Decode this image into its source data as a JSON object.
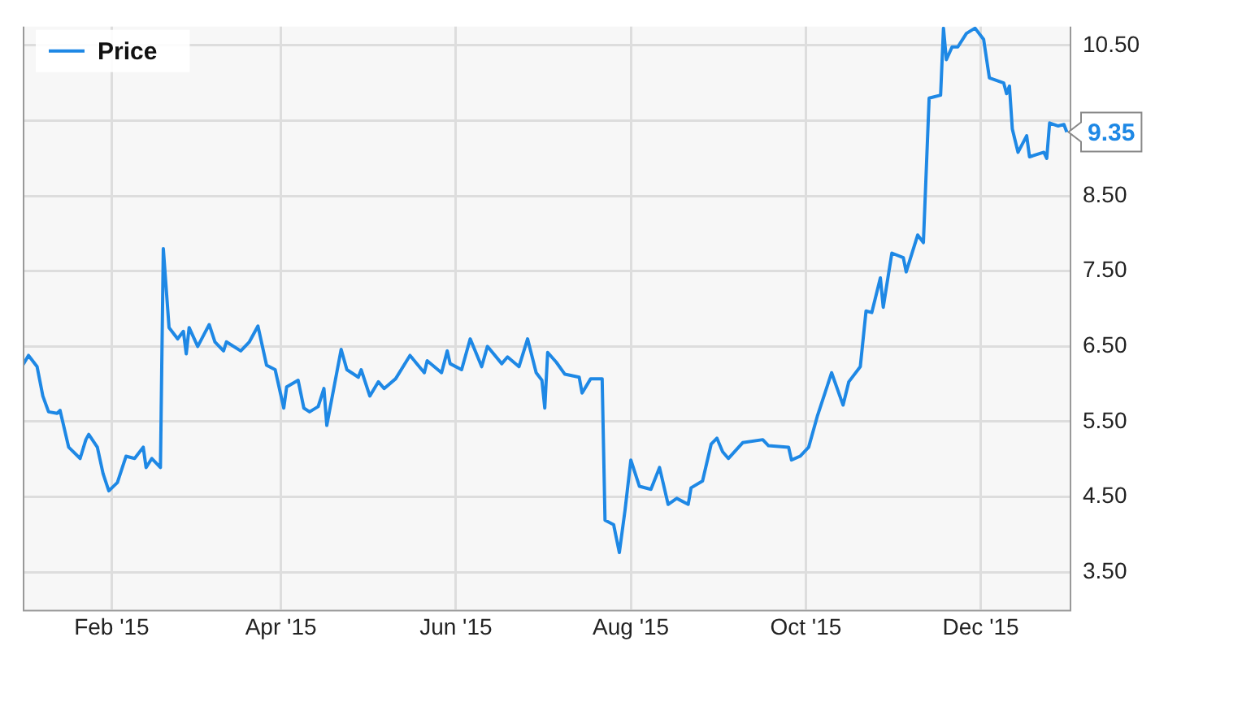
{
  "chart_data": {
    "type": "line",
    "legend": "top left",
    "grid": true,
    "marker": "none",
    "line_style": "solid",
    "xlim": [
      "2015-01-01",
      "2016-01-01"
    ],
    "xticks": [
      {
        "value": "2015-02-01",
        "label": "Feb '15"
      },
      {
        "value": "2015-04-01",
        "label": "Apr '15"
      },
      {
        "value": "2015-06-01",
        "label": "Jun '15"
      },
      {
        "value": "2015-08-01",
        "label": "Aug '15"
      },
      {
        "value": "2015-10-01",
        "label": "Oct '15"
      },
      {
        "value": "2015-12-01",
        "label": "Dec '15"
      }
    ],
    "ylim": [
      3.0,
      10.75
    ],
    "yticks": [
      {
        "value": 3.5,
        "label": "3.50"
      },
      {
        "value": 4.5,
        "label": "4.50"
      },
      {
        "value": 5.5,
        "label": "5.50"
      },
      {
        "value": 6.5,
        "label": "6.50"
      },
      {
        "value": 7.5,
        "label": "7.50"
      },
      {
        "value": 8.5,
        "label": "8.50"
      },
      {
        "value": 9.5,
        "label": null
      },
      {
        "value": 10.5,
        "label": "10.50"
      }
    ],
    "annotations": [
      {
        "text": "9.35",
        "x": "2015-12-31",
        "y": 9.35
      }
    ],
    "series": [
      {
        "name": "Price",
        "color": "#1e88e5",
        "x": [
          "2015-01-01",
          "2015-01-03",
          "2015-01-06",
          "2015-01-08",
          "2015-01-10",
          "2015-01-13",
          "2015-01-14",
          "2015-01-17",
          "2015-01-21",
          "2015-01-23",
          "2015-01-24",
          "2015-01-27",
          "2015-01-29",
          "2015-01-31",
          "2015-02-03",
          "2015-02-06",
          "2015-02-09",
          "2015-02-12",
          "2015-02-13",
          "2015-02-15",
          "2015-02-18",
          "2015-02-19",
          "2015-02-21",
          "2015-02-24",
          "2015-02-26",
          "2015-02-27",
          "2015-02-28",
          "2015-03-03",
          "2015-03-07",
          "2015-03-09",
          "2015-03-12",
          "2015-03-13",
          "2015-03-18",
          "2015-03-21",
          "2015-03-24",
          "2015-03-27",
          "2015-03-30",
          "2015-04-02",
          "2015-04-03",
          "2015-04-07",
          "2015-04-09",
          "2015-04-11",
          "2015-04-14",
          "2015-04-16",
          "2015-04-17",
          "2015-04-22",
          "2015-04-24",
          "2015-04-28",
          "2015-04-29",
          "2015-05-02",
          "2015-05-05",
          "2015-05-07",
          "2015-05-11",
          "2015-05-16",
          "2015-05-21",
          "2015-05-22",
          "2015-05-27",
          "2015-05-29",
          "2015-05-30",
          "2015-06-03",
          "2015-06-06",
          "2015-06-10",
          "2015-06-12",
          "2015-06-17",
          "2015-06-19",
          "2015-06-23",
          "2015-06-26",
          "2015-06-29",
          "2015-07-01",
          "2015-07-02",
          "2015-07-03",
          "2015-07-06",
          "2015-07-09",
          "2015-07-14",
          "2015-07-15",
          "2015-07-18",
          "2015-07-22",
          "2015-07-23",
          "2015-07-26",
          "2015-07-28",
          "2015-07-30",
          "2015-08-01",
          "2015-08-04",
          "2015-08-08",
          "2015-08-11",
          "2015-08-14",
          "2015-08-17",
          "2015-08-21",
          "2015-08-22",
          "2015-08-26",
          "2015-08-29",
          "2015-08-31",
          "2015-09-02",
          "2015-09-04",
          "2015-09-09",
          "2015-09-16",
          "2015-09-18",
          "2015-09-25",
          "2015-09-26",
          "2015-09-29",
          "2015-10-02",
          "2015-10-05",
          "2015-10-10",
          "2015-10-14",
          "2015-10-16",
          "2015-10-20",
          "2015-10-22",
          "2015-10-24",
          "2015-10-27",
          "2015-10-28",
          "2015-10-31",
          "2015-11-04",
          "2015-11-05",
          "2015-11-09",
          "2015-11-11",
          "2015-11-13",
          "2015-11-17",
          "2015-11-18",
          "2015-11-19",
          "2015-11-21",
          "2015-11-23",
          "2015-11-26",
          "2015-11-29",
          "2015-12-02",
          "2015-12-04",
          "2015-12-09",
          "2015-12-10",
          "2015-12-11",
          "2015-12-12",
          "2015-12-14",
          "2015-12-17",
          "2015-12-18",
          "2015-12-23",
          "2015-12-24",
          "2015-12-25",
          "2015-12-28",
          "2015-12-30",
          "2015-12-31"
        ],
        "values": [
          6.25,
          6.38,
          6.23,
          5.84,
          5.63,
          5.61,
          5.65,
          5.16,
          5.01,
          5.26,
          5.33,
          5.16,
          4.81,
          4.58,
          4.69,
          5.04,
          5.01,
          5.16,
          4.89,
          5.01,
          4.89,
          7.8,
          6.75,
          6.6,
          6.7,
          6.4,
          6.75,
          6.5,
          6.79,
          6.56,
          6.44,
          6.56,
          6.44,
          6.56,
          6.77,
          6.25,
          6.19,
          5.68,
          5.96,
          6.05,
          5.68,
          5.63,
          5.7,
          5.94,
          5.45,
          6.46,
          6.19,
          6.09,
          6.19,
          5.84,
          6.03,
          5.94,
          6.07,
          6.38,
          6.15,
          6.31,
          6.15,
          6.44,
          6.27,
          6.19,
          6.6,
          6.23,
          6.5,
          6.27,
          6.36,
          6.23,
          6.6,
          6.15,
          6.05,
          5.68,
          6.42,
          6.29,
          6.13,
          6.09,
          5.88,
          6.07,
          6.07,
          4.19,
          4.13,
          3.76,
          4.33,
          4.99,
          4.64,
          4.6,
          4.89,
          4.4,
          4.48,
          4.4,
          4.62,
          4.71,
          5.2,
          5.28,
          5.1,
          5.01,
          5.22,
          5.26,
          5.18,
          5.16,
          4.99,
          5.04,
          5.16,
          5.57,
          6.15,
          5.72,
          6.03,
          6.23,
          6.97,
          6.95,
          7.41,
          7.02,
          7.74,
          7.68,
          7.49,
          7.98,
          7.88,
          9.8,
          9.84,
          10.73,
          10.31,
          10.48,
          10.48,
          10.66,
          10.73,
          10.58,
          10.07,
          10.0,
          9.86,
          9.96,
          9.39,
          9.08,
          9.3,
          9.02,
          9.08,
          9.0,
          9.47,
          9.43,
          9.45,
          9.35
        ]
      }
    ]
  }
}
